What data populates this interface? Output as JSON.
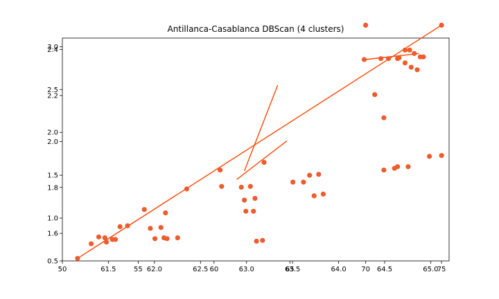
{
  "chart_data": {
    "type": "scatter",
    "title": "Antillanca-Casablanca DBScan (4 clusters)",
    "xlabel": "",
    "ylabel": "",
    "grid": false,
    "color": "#ff4500",
    "point_color": "#ef5b2b",
    "axes": {
      "bottom": {
        "ticks": [
          50,
          55,
          60,
          65,
          70,
          75
        ],
        "lim": [
          50,
          75.5
        ]
      },
      "bottom_twin": {
        "ticks": [
          61.5,
          62.0,
          62.5,
          63.0,
          63.5,
          64.0,
          64.5,
          65.0
        ],
        "lim": [
          61.0,
          65.2
        ]
      },
      "left": {
        "ticks": [
          0.5,
          1.0,
          1.5,
          2.0,
          2.5,
          3.0
        ],
        "lim": [
          0.5,
          3.1
        ]
      },
      "left_twin": {
        "ticks": [
          1.6,
          1.8,
          2.0,
          2.2,
          2.4
        ],
        "lim": [
          1.48,
          2.45
        ]
      }
    },
    "points": [
      {
        "x": 51,
        "y": 0.53
      },
      {
        "x": 51.9,
        "y": 0.7
      },
      {
        "x": 52.4,
        "y": 0.78
      },
      {
        "x": 52.8,
        "y": 0.77
      },
      {
        "x": 52.9,
        "y": 0.72
      },
      {
        "x": 53.3,
        "y": 0.75
      },
      {
        "x": 53.5,
        "y": 0.75
      },
      {
        "x": 53.8,
        "y": 0.9
      },
      {
        "x": 54.3,
        "y": 0.91
      },
      {
        "x": 55.4,
        "y": 1.1
      },
      {
        "x": 55.8,
        "y": 0.88
      },
      {
        "x": 56.1,
        "y": 0.76
      },
      {
        "x": 56.5,
        "y": 0.89
      },
      {
        "x": 56.8,
        "y": 1.06
      },
      {
        "x": 56.7,
        "y": 0.77
      },
      {
        "x": 56.9,
        "y": 0.76
      },
      {
        "x": 57.6,
        "y": 0.77
      },
      {
        "x": 58.2,
        "y": 1.34
      },
      {
        "x": 60.4,
        "y": 1.56
      },
      {
        "x": 60.5,
        "y": 1.37
      },
      {
        "x": 61.8,
        "y": 1.36
      },
      {
        "x": 62.0,
        "y": 1.21
      },
      {
        "x": 62.1,
        "y": 1.08
      },
      {
        "x": 62.4,
        "y": 1.37
      },
      {
        "x": 62.6,
        "y": 1.08
      },
      {
        "x": 62.7,
        "y": 1.23
      },
      {
        "x": 62.8,
        "y": 0.73
      },
      {
        "x": 63.2,
        "y": 0.74
      },
      {
        "x": 63.3,
        "y": 1.65
      },
      {
        "x": 65.2,
        "y": 1.42
      },
      {
        "x": 65.9,
        "y": 1.42
      },
      {
        "x": 66.3,
        "y": 1.5
      },
      {
        "x": 66.6,
        "y": 1.26
      },
      {
        "x": 66.9,
        "y": 1.51
      },
      {
        "x": 67.2,
        "y": 1.28
      },
      {
        "x": 70.0,
        "y": 3.25
      },
      {
        "x": 69.9,
        "y": 2.85
      },
      {
        "x": 71.2,
        "y": 1.56
      },
      {
        "x": 71.9,
        "y": 1.58
      },
      {
        "x": 72.1,
        "y": 1.6
      },
      {
        "x": 72.8,
        "y": 1.6
      },
      {
        "x": 74.2,
        "y": 1.72
      },
      {
        "x": 75.0,
        "y": 1.73
      },
      {
        "x": 75.0,
        "y": 3.25
      },
      {
        "x": 71.0,
        "y": 2.86
      },
      {
        "x": 71.5,
        "y": 2.86
      },
      {
        "x": 72.2,
        "y": 2.87
      },
      {
        "x": 72.6,
        "y": 2.96
      },
      {
        "x": 72.9,
        "y": 2.96
      },
      {
        "x": 73.2,
        "y": 2.92
      },
      {
        "x": 73.6,
        "y": 2.88
      },
      {
        "x": 72.6,
        "y": 2.81
      },
      {
        "x": 73.0,
        "y": 2.76
      },
      {
        "x": 73.4,
        "y": 2.73
      },
      {
        "x": 72.1,
        "y": 2.86
      },
      {
        "x": 73.8,
        "y": 2.88
      },
      {
        "x": 71.2,
        "y": 2.17
      },
      {
        "x": 70.6,
        "y": 2.44
      }
    ],
    "lines": [
      {
        "x": [
          51.0,
          75.0
        ],
        "y": [
          0.53,
          3.25
        ]
      },
      {
        "x": [
          62.0,
          64.2
        ],
        "y": [
          1.55,
          2.55
        ]
      },
      {
        "x": [
          61.5,
          64.8
        ],
        "y": [
          1.45,
          1.9
        ]
      },
      {
        "x": [
          70.0,
          73.5
        ],
        "y": [
          2.85,
          2.92
        ]
      }
    ]
  }
}
